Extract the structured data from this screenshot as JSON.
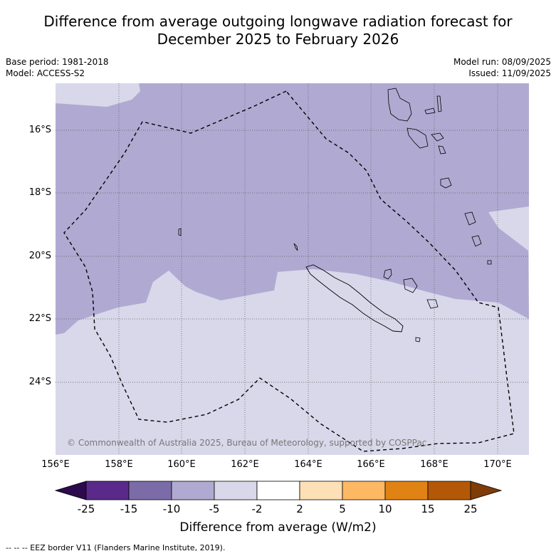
{
  "title_line1": "Difference from average outgoing longwave radiation forecast for",
  "title_line2": "December 2025 to February 2026",
  "meta_left": {
    "base_period": "Base period: 1981-2018",
    "model": "Model: ACCESS-S2"
  },
  "meta_right": {
    "model_run": "Model run: 08/09/2025",
    "issued": "Issued: 11/09/2025"
  },
  "copyright": "© Commonwealth of Australia 2025, Bureau of Meteorology, supported by COSPPac",
  "lat_labels": [
    "16°S",
    "18°S",
    "20°S",
    "22°S",
    "24°S"
  ],
  "lon_labels": [
    "156°E",
    "158°E",
    "160°E",
    "162°E",
    "164°E",
    "166°E",
    "168°E",
    "170°E"
  ],
  "colorbar": {
    "ticks": [
      "-25",
      "-15",
      "-10",
      "-5",
      "-2",
      "2",
      "5",
      "10",
      "15",
      "25"
    ],
    "colors": [
      "#2d0a4e",
      "#5a2a8a",
      "#7b6ca8",
      "#b0aad2",
      "#d8d8ea",
      "#ffffff",
      "#fee0b6",
      "#fdb863",
      "#e08214",
      "#b35806",
      "#7f3b08"
    ],
    "label": "Difference from average (W/m2)"
  },
  "legend": "-- -- -- EEZ border V11 (Flanders Marine Institute, 2019).",
  "map_colors": {
    "darker": "#b0aad2",
    "lighter": "#d8d8ea",
    "eez": "#000000"
  }
}
